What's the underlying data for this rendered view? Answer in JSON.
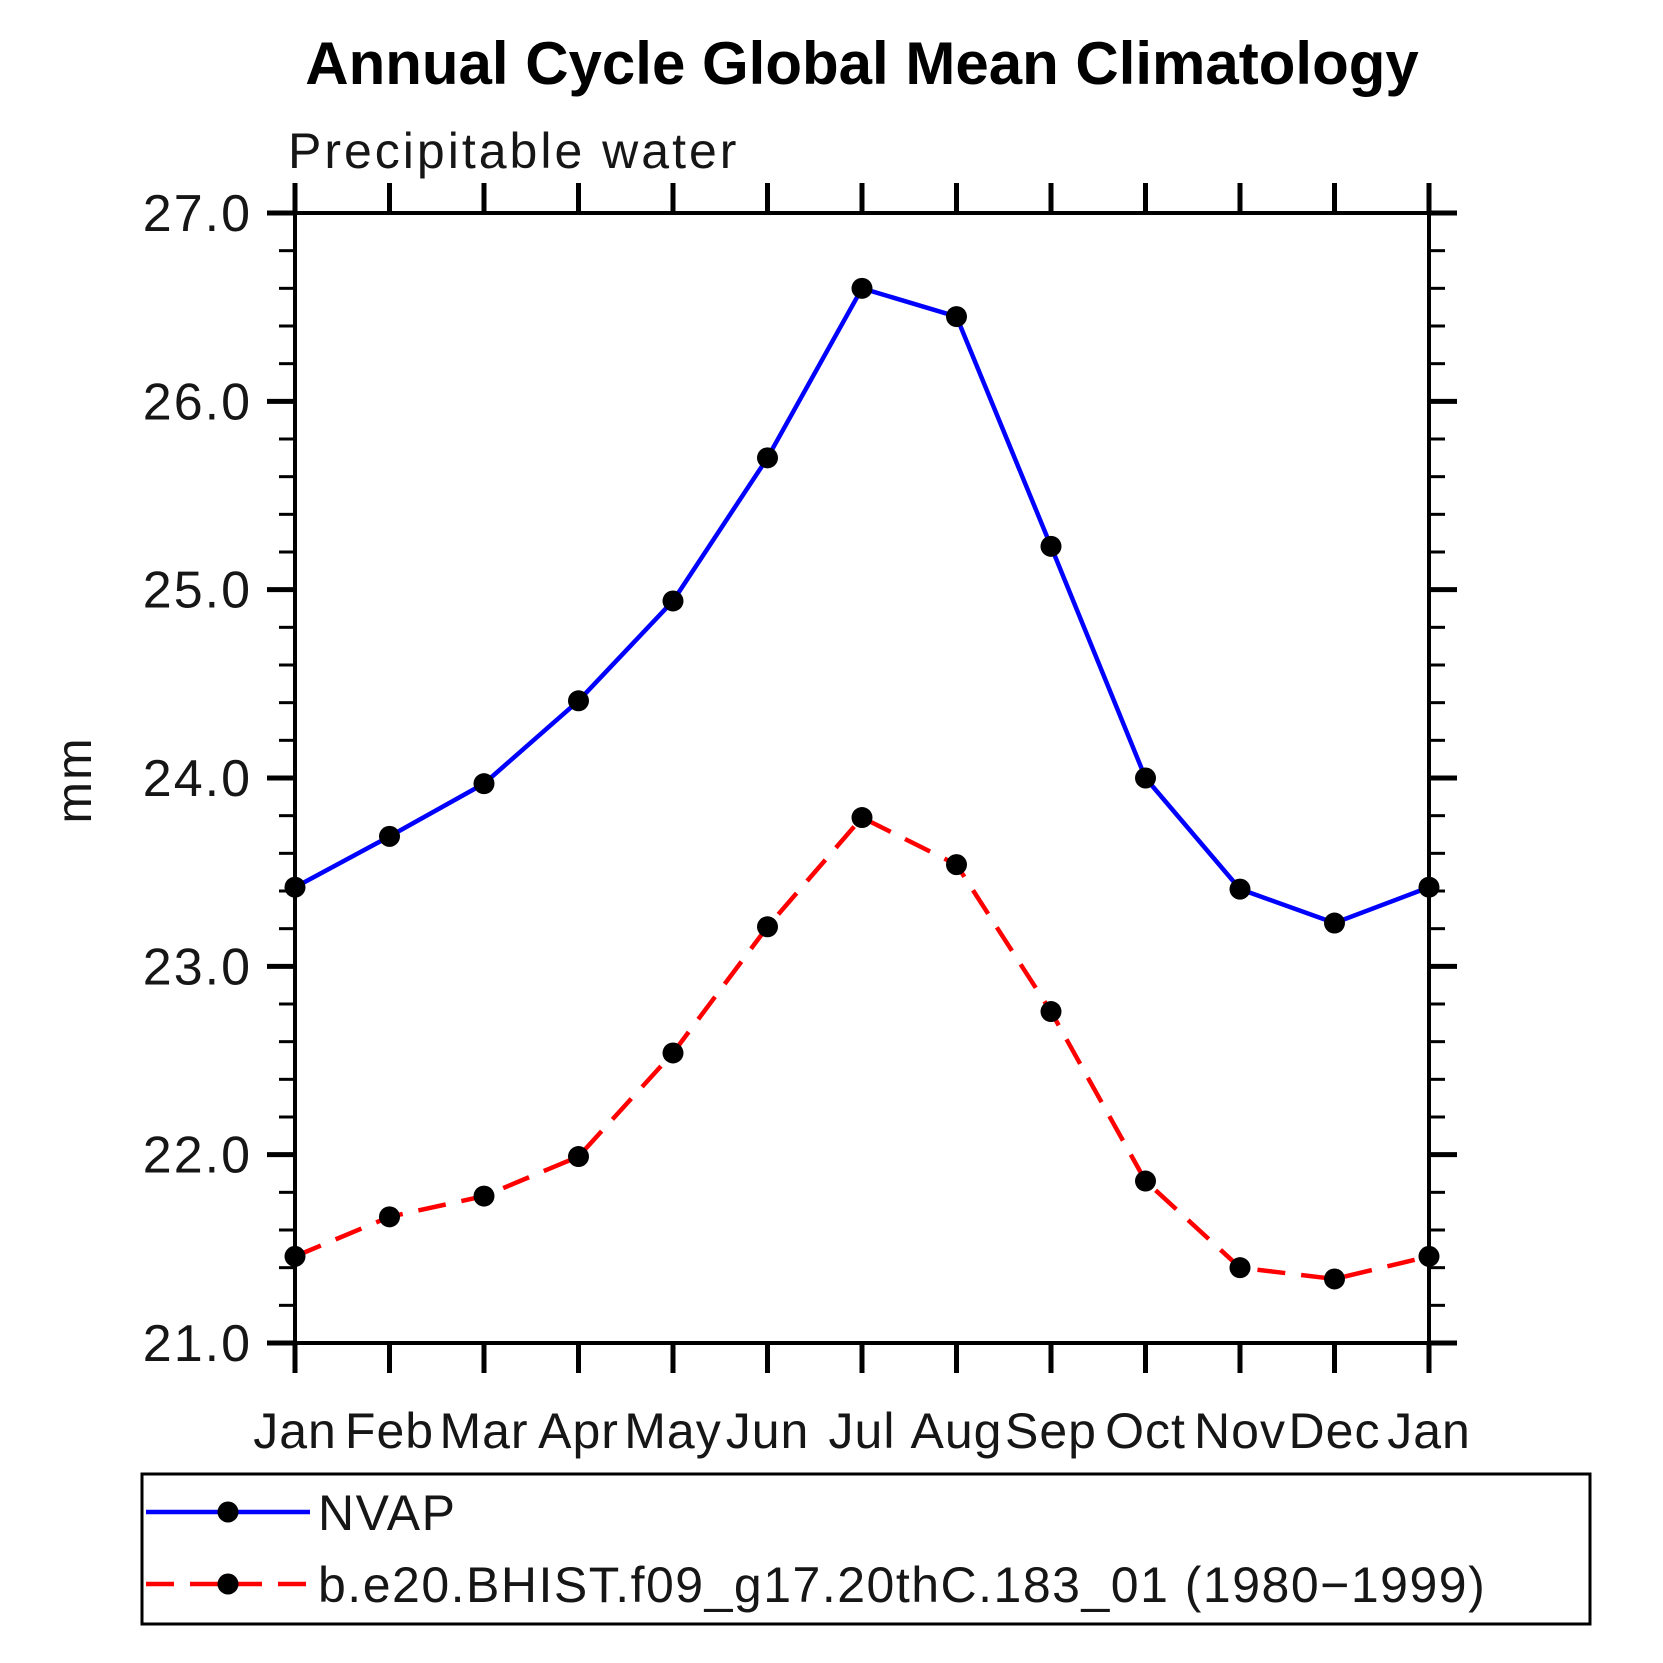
{
  "chart_data": {
    "type": "line",
    "title": "Annual Cycle Global Mean Climatology",
    "subtitle": "Precipitable water",
    "ylabel": "mm",
    "xlabel": "",
    "categories": [
      "Jan",
      "Feb",
      "Mar",
      "Apr",
      "May",
      "Jun",
      "Jul",
      "Aug",
      "Sep",
      "Oct",
      "Nov",
      "Dec",
      "Jan"
    ],
    "ylim": [
      21.0,
      27.0
    ],
    "ytick_labels": [
      "21.0",
      "22.0",
      "23.0",
      "24.0",
      "25.0",
      "26.0",
      "27.0"
    ],
    "ytick_step": 1.0,
    "yminor_step": 0.2,
    "grid": false,
    "legend_position": "bottom-left",
    "axis_color": "#000000",
    "series": [
      {
        "name": "NVAP",
        "color": "#0000ff",
        "line_style": "solid",
        "marker": "circle",
        "marker_color": "#000000",
        "values": [
          23.42,
          23.69,
          23.97,
          24.41,
          24.94,
          25.7,
          26.6,
          26.45,
          25.23,
          24.0,
          23.41,
          23.23,
          23.42
        ]
      },
      {
        "name": "b.e20.BHIST.f09_g17.20thC.183_01 (1980−1999)",
        "color": "#ff0000",
        "line_style": "dashed",
        "marker": "circle",
        "marker_color": "#000000",
        "values": [
          21.46,
          21.67,
          21.78,
          21.99,
          22.54,
          23.21,
          23.79,
          23.54,
          22.76,
          21.86,
          21.4,
          21.34,
          21.46
        ]
      }
    ]
  }
}
